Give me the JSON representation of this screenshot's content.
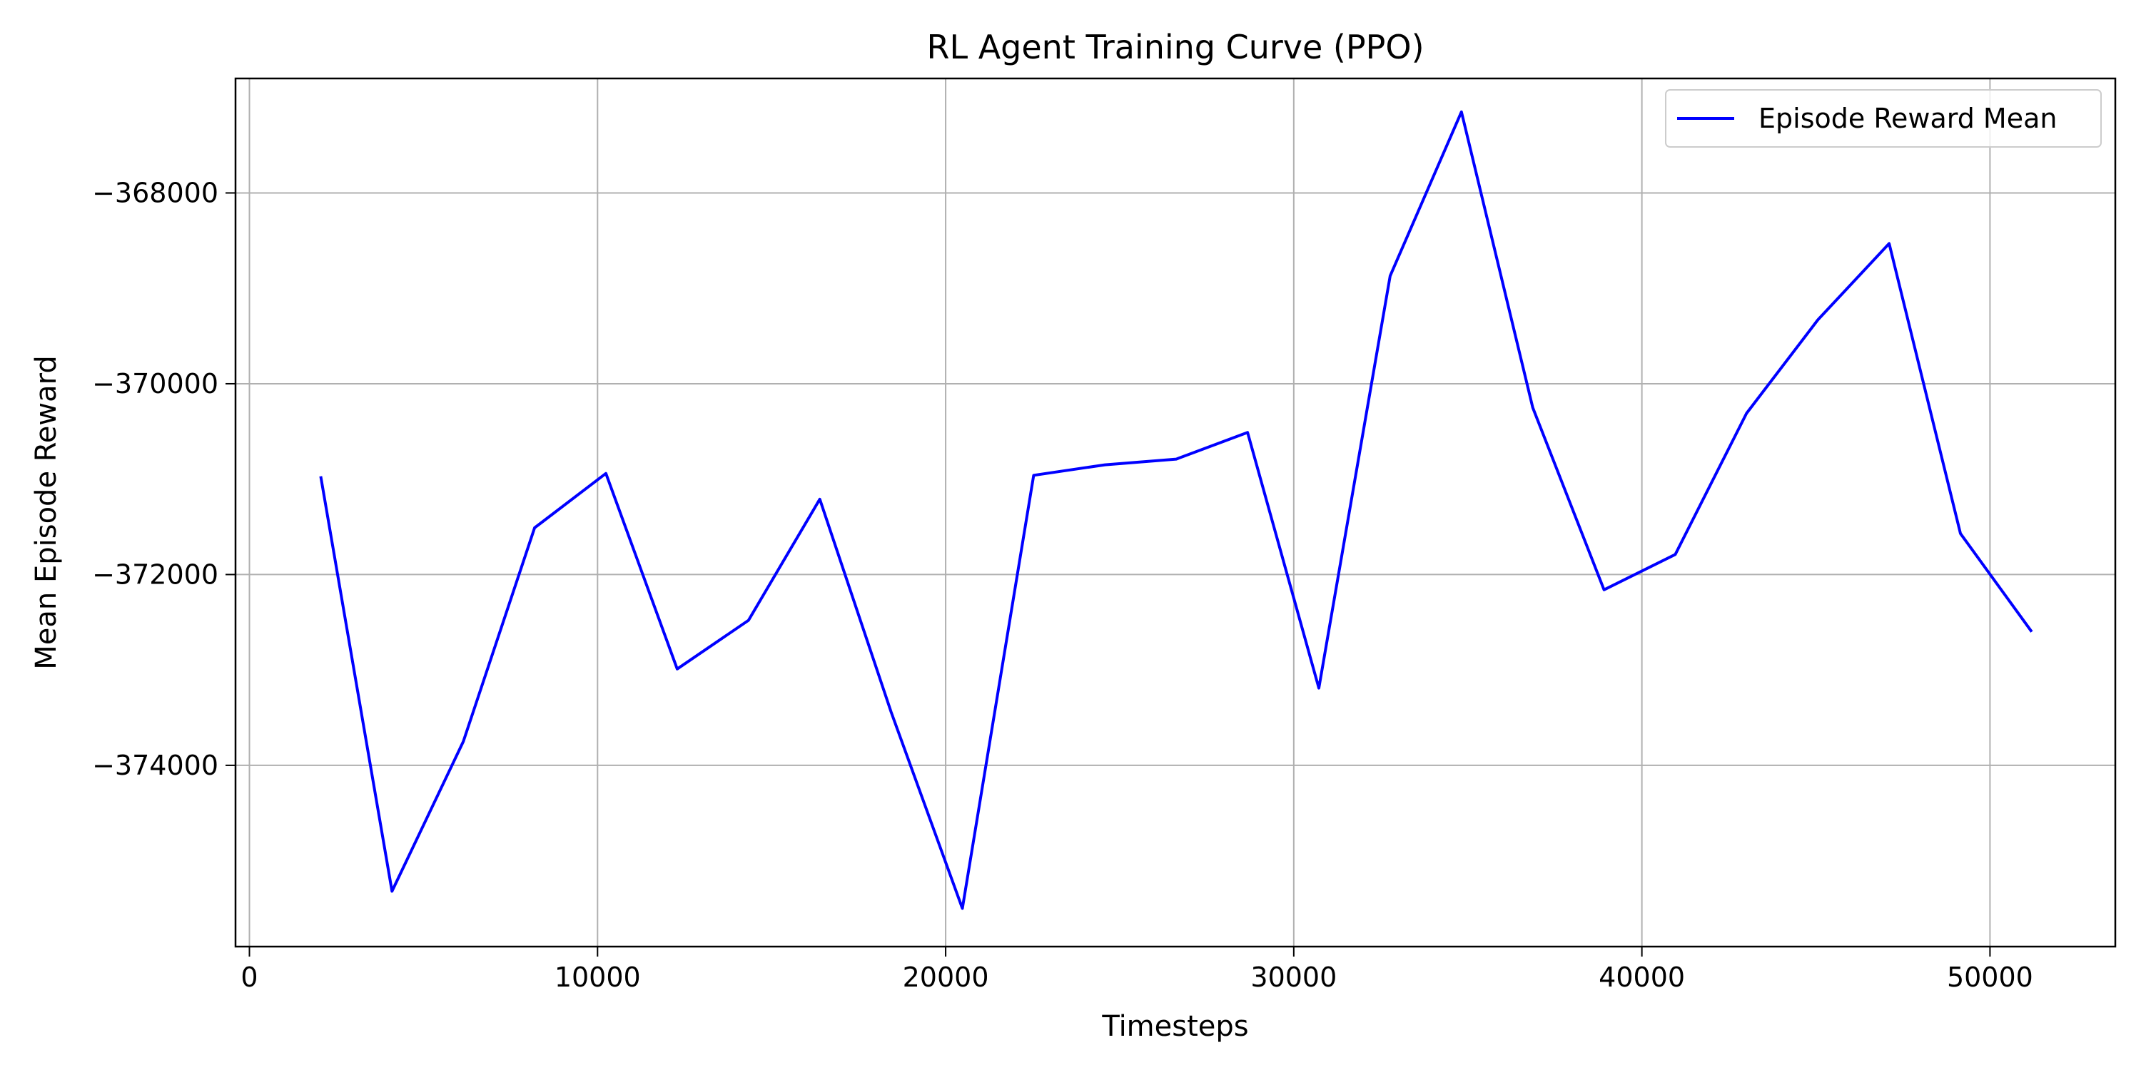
{
  "chart_data": {
    "type": "line",
    "title": "RL Agent Training Curve (PPO)",
    "xlabel": "Timesteps",
    "ylabel": "Mean Episode Reward",
    "xlim": [
      -400,
      53600
    ],
    "ylim": [
      -375900,
      -366800
    ],
    "xticks": [
      0,
      10000,
      20000,
      30000,
      40000,
      50000
    ],
    "yticks": [
      -374000,
      -372000,
      -370000,
      -368000
    ],
    "ytick_labels": [
      "−374000",
      "−372000",
      "−370000",
      "−368000"
    ],
    "grid": true,
    "legend_position": "top-right",
    "series": [
      {
        "name": "Episode Reward Mean",
        "color": "#0000ff",
        "x": [
          2048,
          4096,
          6144,
          8192,
          10240,
          12288,
          14336,
          16384,
          18432,
          20480,
          22528,
          24576,
          26624,
          28672,
          30720,
          32768,
          34816,
          36864,
          38912,
          40960,
          43008,
          45056,
          47104,
          49152,
          51200
        ],
        "y": [
          -370970,
          -375320,
          -373750,
          -371510,
          -370940,
          -372990,
          -372480,
          -371210,
          -373440,
          -375500,
          -370960,
          -370850,
          -370790,
          -370510,
          -373190,
          -368870,
          -367150,
          -370250,
          -372160,
          -371790,
          -370310,
          -369330,
          -368530,
          -371570,
          -372600
        ]
      }
    ]
  }
}
